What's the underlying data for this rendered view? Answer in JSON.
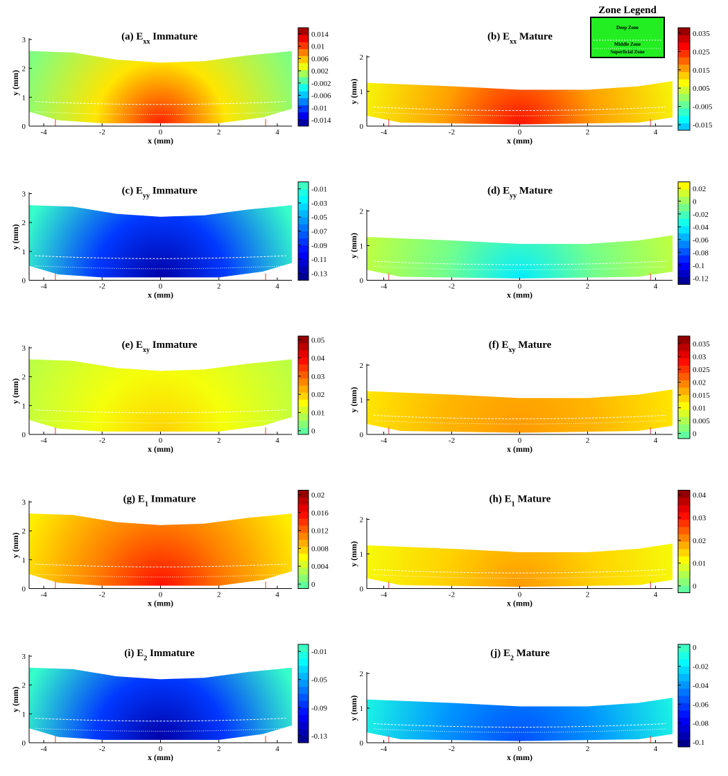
{
  "chart_data": [
    {
      "type": "contour",
      "title": [
        "(a) E",
        "xx",
        " Immature"
      ],
      "x_label": "x (mm)",
      "y_label": "y (mm)",
      "xlim": [
        -4.5,
        4.5
      ],
      "xticks": [
        -4,
        -2,
        0,
        2,
        4
      ],
      "ylim": [
        0,
        3
      ],
      "yticks": [
        0,
        1,
        2,
        3
      ],
      "colorbar_lim": [
        -0.016,
        0.016
      ],
      "colorbar_ticks": [
        0.014,
        0.01,
        0.006,
        0.002,
        -0.002,
        -0.006,
        -0.01,
        -0.014
      ]
    },
    {
      "type": "contour",
      "title": [
        "(b) E",
        "xx",
        " Mature"
      ],
      "x_label": "x (mm)",
      "y_label": "y (mm)",
      "xlim": [
        -4.5,
        4.5
      ],
      "xticks": [
        -4,
        -2,
        0,
        2,
        4
      ],
      "ylim": [
        0,
        2
      ],
      "yticks": [
        0,
        1,
        2
      ],
      "colorbar_lim": [
        -0.018,
        0.038
      ],
      "colorbar_ticks": [
        0.035,
        0.025,
        0.015,
        0.005,
        -0.005,
        -0.015
      ]
    },
    {
      "type": "contour",
      "title": [
        "(c) E",
        "yy",
        " Immature"
      ],
      "x_label": "x (mm)",
      "y_label": "y (mm)",
      "xlim": [
        -4.5,
        4.5
      ],
      "xticks": [
        -4,
        -2,
        0,
        2,
        4
      ],
      "ylim": [
        0,
        3
      ],
      "yticks": [
        0,
        1,
        2,
        3
      ],
      "colorbar_lim": [
        -0.14,
        0
      ],
      "colorbar_ticks": [
        -0.01,
        -0.03,
        -0.05,
        -0.07,
        -0.09,
        -0.11,
        -0.13
      ]
    },
    {
      "type": "contour",
      "title": [
        "(d) E",
        "yy",
        " Mature"
      ],
      "x_label": "x (mm)",
      "y_label": "y (mm)",
      "xlim": [
        -4.5,
        4.5
      ],
      "xticks": [
        -4,
        -2,
        0,
        2,
        4
      ],
      "ylim": [
        0,
        2
      ],
      "yticks": [
        0,
        1,
        2
      ],
      "colorbar_lim": [
        -0.13,
        0.03
      ],
      "colorbar_ticks": [
        0.02,
        0,
        -0.02,
        -0.04,
        -0.06,
        -0.08,
        -0.1,
        -0.12
      ]
    },
    {
      "type": "contour",
      "title": [
        "(e) E",
        "xy",
        " Immature"
      ],
      "x_label": "x (mm)",
      "y_label": "y (mm)",
      "xlim": [
        -4.5,
        4.5
      ],
      "xticks": [
        -4,
        -2,
        0,
        2,
        4
      ],
      "ylim": [
        0,
        3
      ],
      "yticks": [
        0,
        1,
        2,
        3
      ],
      "colorbar_lim": [
        -0.002,
        0.052
      ],
      "colorbar_ticks": [
        0.05,
        0.04,
        0.03,
        0.02,
        0.01,
        0
      ]
    },
    {
      "type": "contour",
      "title": [
        "(f) E",
        "xy",
        " Mature"
      ],
      "x_label": "x (mm)",
      "y_label": "y (mm)",
      "xlim": [
        -4.5,
        4.5
      ],
      "xticks": [
        -4,
        -2,
        0,
        2,
        4
      ],
      "ylim": [
        0,
        2
      ],
      "yticks": [
        0,
        1,
        2
      ],
      "colorbar_lim": [
        -0.002,
        0.038
      ],
      "colorbar_ticks": [
        0.035,
        0.03,
        0.025,
        0.02,
        0.015,
        0.01,
        0.005,
        0
      ]
    },
    {
      "type": "contour",
      "title": [
        "(g) E",
        "1",
        " Immature"
      ],
      "x_label": "x (mm)",
      "y_label": "y (mm)",
      "xlim": [
        -4.5,
        4.5
      ],
      "xticks": [
        -4,
        -2,
        0,
        2,
        4
      ],
      "ylim": [
        0,
        3
      ],
      "yticks": [
        0,
        1,
        2,
        3
      ],
      "colorbar_lim": [
        -0.001,
        0.021
      ],
      "colorbar_ticks": [
        0.02,
        0.016,
        0.012,
        0.008,
        0.004,
        0
      ]
    },
    {
      "type": "contour",
      "title": [
        "(h) E",
        "1",
        " Mature"
      ],
      "x_label": "x (mm)",
      "y_label": "y (mm)",
      "xlim": [
        -4.5,
        4.5
      ],
      "xticks": [
        -4,
        -2,
        0,
        2,
        4
      ],
      "ylim": [
        0,
        2
      ],
      "yticks": [
        0,
        1,
        2
      ],
      "colorbar_lim": [
        -0.003,
        0.042
      ],
      "colorbar_ticks": [
        0.04,
        0.03,
        0.02,
        0.01,
        0
      ]
    },
    {
      "type": "contour",
      "title": [
        "(i) E",
        "2",
        "  Immature"
      ],
      "x_label": "x (mm)",
      "y_label": "y (mm)",
      "xlim": [
        -4.5,
        4.5
      ],
      "xticks": [
        -4,
        -2,
        0,
        2,
        4
      ],
      "ylim": [
        0,
        3
      ],
      "yticks": [
        0,
        1,
        2,
        3
      ],
      "colorbar_lim": [
        -0.14,
        0
      ],
      "colorbar_ticks": [
        -0.01,
        -0.05,
        -0.09,
        -0.13
      ]
    },
    {
      "type": "contour",
      "title": [
        "(j) E",
        "2",
        " Mature"
      ],
      "x_label": "x (mm)",
      "y_label": "y (mm)",
      "xlim": [
        -4.5,
        4.5
      ],
      "xticks": [
        -4,
        -2,
        0,
        2,
        4
      ],
      "ylim": [
        0,
        2
      ],
      "yticks": [
        0,
        1,
        2
      ],
      "colorbar_lim": [
        -0.105,
        0.003
      ],
      "colorbar_ticks": [
        0,
        -0.02,
        -0.04,
        -0.06,
        -0.08,
        -0.1
      ]
    }
  ],
  "zone_legend": {
    "title": "Zone Legend",
    "labels": [
      "Deep Zone",
      "Middle Zone",
      "Superficial Zone"
    ]
  }
}
